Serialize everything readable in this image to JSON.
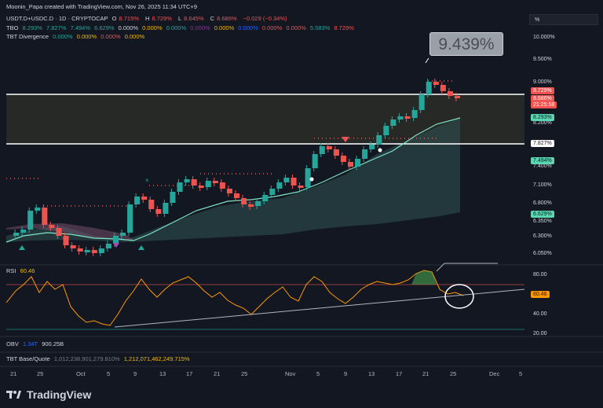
{
  "header": {
    "credit": "Moonin_Papa created with TradingView.com, Nov 26, 2025 11:34 UTC+9"
  },
  "symbol": {
    "name": "USDT.D+USDC.D · 1D · CRYPTOCAP",
    "o_label": "O",
    "o": "8.715%",
    "h_label": "H",
    "h": "8.729%",
    "l_label": "L",
    "l": "8.645%",
    "c_label": "C",
    "c": "8.686%",
    "chg": "−0.029 (−0.34%)"
  },
  "tbo": {
    "label": "TBO",
    "values": [
      "8.293%",
      "7.827%",
      "7.494%",
      "6.629%",
      "0.000%",
      "0.000%",
      "0.000%",
      "0.000%",
      "0.000%",
      "0.000%",
      "0.000%",
      "0.000%",
      "5.583%",
      "8.729%"
    ]
  },
  "tbt": {
    "label": "TBT Divergence",
    "values": [
      "0.000%",
      "0.000%",
      "0.000%",
      "0.000%"
    ]
  },
  "price_axis": {
    "percent_btn": "%",
    "ticks": [
      "10.000%",
      "9.500%",
      "9.000%",
      "8.200%",
      "7.400%",
      "7.100%",
      "6.800%",
      "6.350%",
      "6.300%",
      "6.050%"
    ],
    "badges": [
      {
        "text": "8.729%",
        "color": "#ef5350"
      },
      {
        "text": "8.686%",
        "color": "#ef5350"
      },
      {
        "text": "21:25:58",
        "color": "#ef5350"
      },
      {
        "text": "8.293%",
        "color": "#5ad7b0"
      },
      {
        "text": "7.827%",
        "color": "#ffffff"
      },
      {
        "text": "7.494%",
        "color": "#5ad7b0"
      },
      {
        "text": "6.629%",
        "color": "#5ad7b0"
      }
    ]
  },
  "callout": {
    "text": "9.439%"
  },
  "rsi": {
    "label": "RSI",
    "value": "60.46",
    "ticks": [
      "80.00",
      "60.46",
      "40.00",
      "20.00"
    ]
  },
  "obv": {
    "label": "OBV",
    "v1": "1.34T",
    "v2": "900.25B"
  },
  "tbt_bq": {
    "label": "TBT Base/Quote",
    "v1": "1,012,238,901,279.810%",
    "v2": "1,212,071,462,249.715%"
  },
  "x_axis": [
    "21",
    "25",
    "Oct",
    "5",
    "9",
    "13",
    "17",
    "21",
    "25",
    "Nov",
    "5",
    "9",
    "13",
    "17",
    "21",
    "25",
    "Dec",
    "5"
  ],
  "brand": {
    "name": "TradingView"
  }
}
